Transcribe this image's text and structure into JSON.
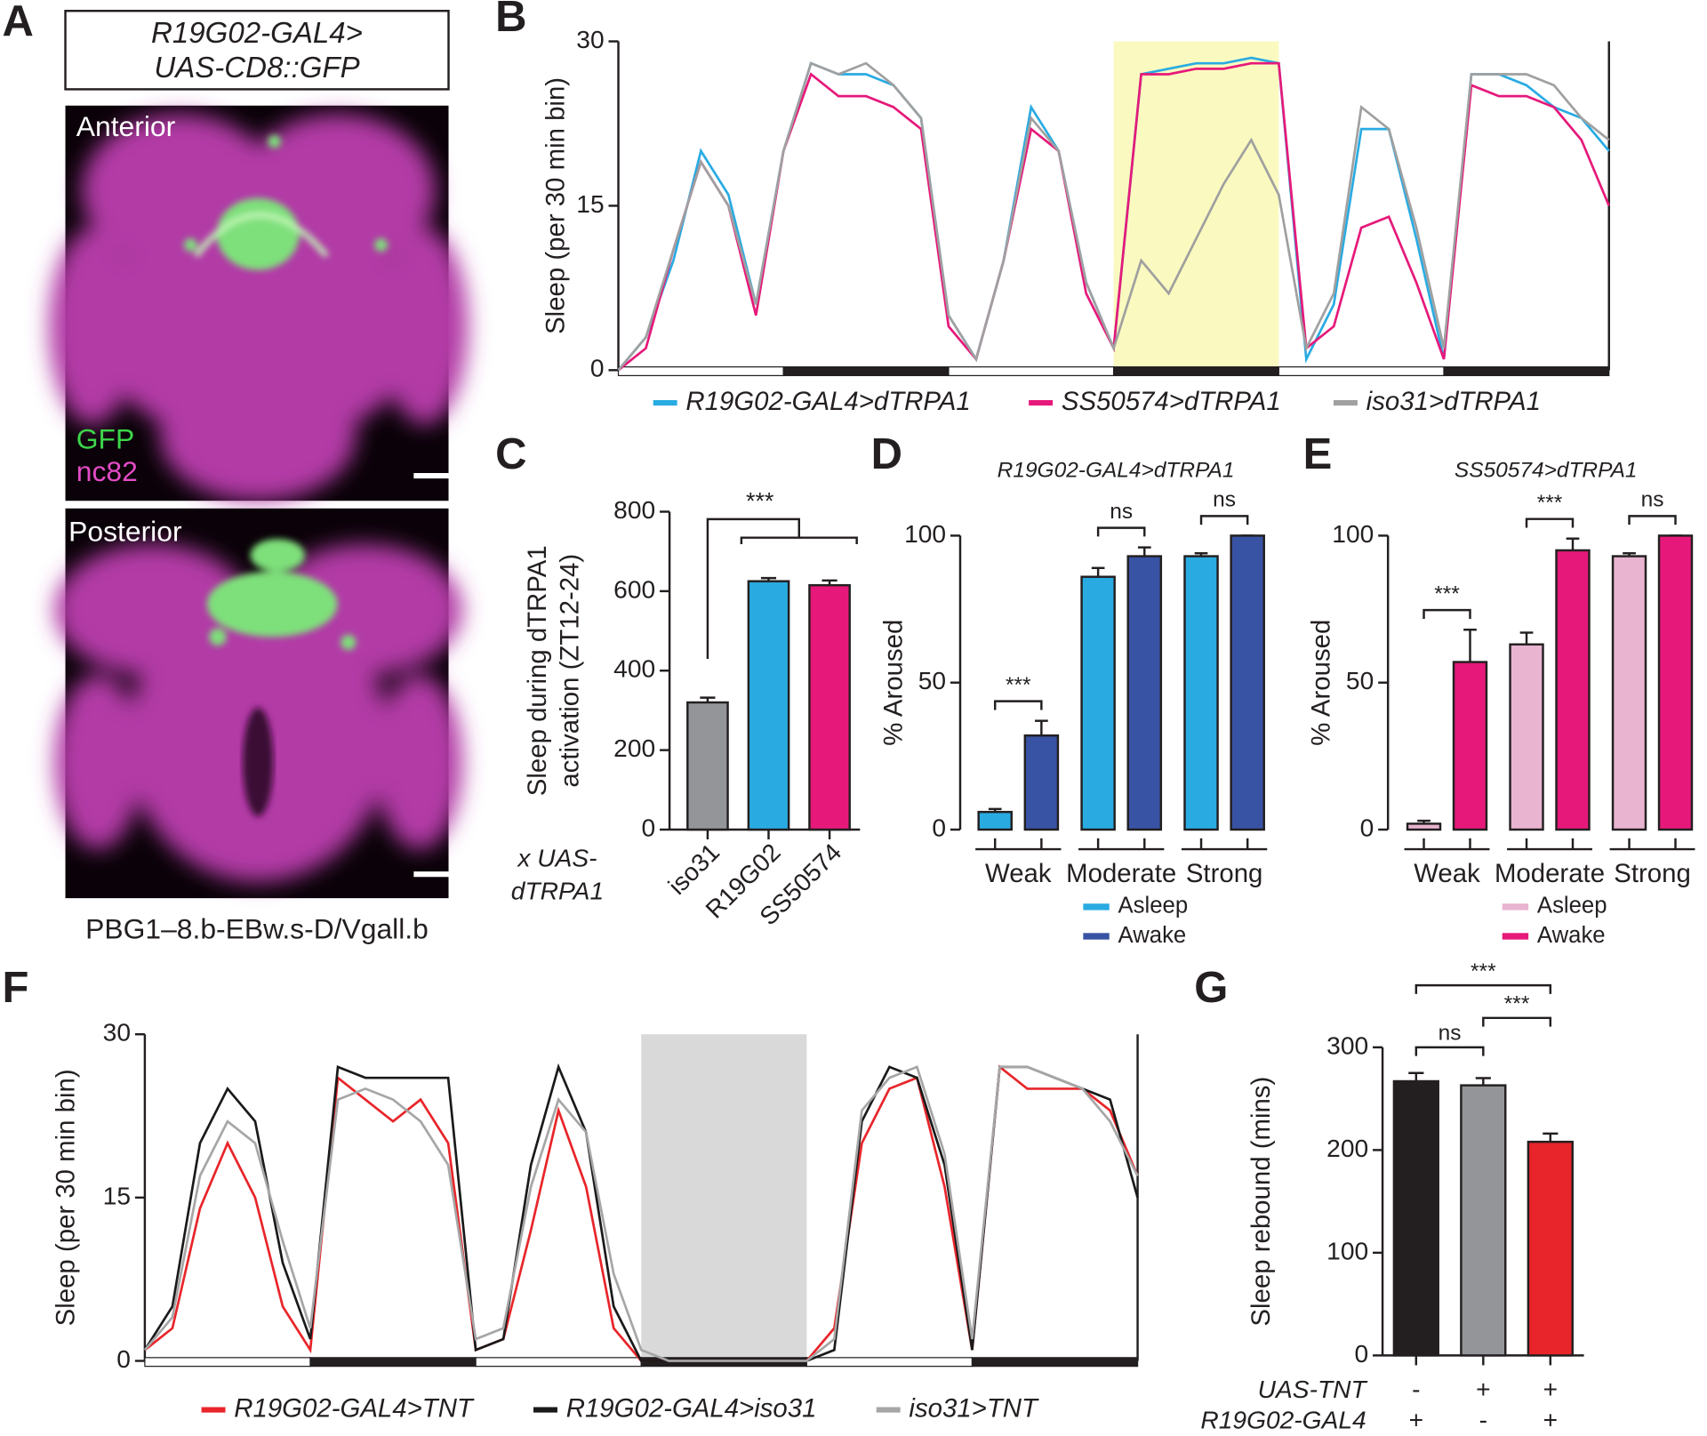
{
  "panel_labels": [
    "A",
    "B",
    "C",
    "D",
    "E",
    "F",
    "G"
  ],
  "image_panel": {
    "box_lines": [
      "R19G02-GAL4>",
      "UAS-CD8::GFP"
    ],
    "top_label": "Anterior",
    "stain_1": "GFP",
    "stain_2": "nc82",
    "bottom_label": "Posterior",
    "caption": "PBG1–8.b-EBw.s-D/Vgall.b"
  },
  "chart_data": [
    {
      "type": "line",
      "ylabel": "Sleep (per 30 min bin)",
      "xlim": [
        0,
        72
      ],
      "ylim": [
        0,
        30
      ],
      "yticks": [
        0,
        15,
        30
      ],
      "shaded_x": [
        36,
        48
      ],
      "shade_color": "#fafac0",
      "x": [
        0,
        2,
        4,
        6,
        8,
        10,
        12,
        14,
        16,
        18,
        20,
        22,
        24,
        26,
        28,
        30,
        32,
        34,
        36,
        38,
        40,
        42,
        44,
        46,
        48,
        50,
        52,
        54,
        56,
        58,
        60,
        62,
        64,
        66,
        68,
        70,
        72
      ],
      "series": [
        {
          "name": "R19G02-GAL4>dTRPA1",
          "color": "#29abe2",
          "values": [
            0,
            3,
            10,
            20,
            16,
            6,
            20,
            28,
            27,
            27,
            26,
            23,
            5,
            1,
            10,
            24,
            20,
            8,
            2,
            27,
            27.5,
            28,
            28,
            28.5,
            28,
            1,
            6,
            22,
            22,
            12,
            1,
            27,
            27,
            26,
            24,
            23,
            20
          ]
        },
        {
          "name": "SS50574>dTRPA1",
          "color": "#e6197a",
          "values": [
            0,
            2,
            11,
            19,
            15,
            5,
            20,
            27,
            25,
            25,
            24,
            22,
            4,
            1,
            10,
            22,
            20,
            7,
            2,
            27,
            27,
            27.5,
            27.5,
            28,
            28,
            2,
            4,
            13,
            14,
            8,
            1,
            26,
            25,
            25,
            24,
            21,
            15
          ]
        },
        {
          "name": "iso31>dTRPA1",
          "color": "#a0a0a0",
          "values": [
            0,
            3,
            11,
            19,
            15,
            6,
            20,
            28,
            27,
            28,
            26,
            23,
            5,
            1,
            10,
            23,
            20,
            8,
            2,
            10,
            7,
            12,
            17,
            21,
            16,
            2,
            7,
            24,
            22,
            13,
            2,
            27,
            27,
            27,
            26,
            23,
            21
          ]
        }
      ]
    },
    {
      "type": "bar",
      "ylabel": [
        "Sleep during dTRPA1",
        "activation (ZT12-24)"
      ],
      "xlabel": [
        "x UAS-",
        "dTRPA1"
      ],
      "categories": [
        "iso31",
        "R19G02",
        "SS50574"
      ],
      "values": [
        320,
        625,
        615
      ],
      "errors": [
        12,
        8,
        12
      ],
      "colors": [
        "#939598",
        "#29abe2",
        "#e6197a"
      ],
      "ylim": [
        0,
        800
      ],
      "yticks": [
        0,
        200,
        400,
        600,
        800
      ],
      "significance": "***"
    },
    {
      "type": "grouped",
      "subtitle": "R19G02-GAL4>dTRPA1",
      "ylabel": "% Aroused",
      "categories": [
        "Weak",
        "Moderate",
        "Strong"
      ],
      "ylim": [
        0,
        100
      ],
      "yticks": [
        0,
        50,
        100
      ],
      "significance": [
        "***",
        "ns",
        "ns"
      ],
      "series": [
        {
          "name": "Asleep",
          "color": "#29abe2",
          "values": [
            6,
            86,
            93
          ],
          "errors": [
            1,
            3,
            1
          ]
        },
        {
          "name": "Awake",
          "color": "#3953a4",
          "values": [
            32,
            93,
            100
          ],
          "errors": [
            5,
            3,
            0
          ]
        }
      ]
    },
    {
      "type": "grouped",
      "subtitle": "SS50574>dTRPA1",
      "ylabel": "% Aroused",
      "categories": [
        "Weak",
        "Moderate",
        "Strong"
      ],
      "ylim": [
        0,
        100
      ],
      "yticks": [
        0,
        50,
        100
      ],
      "significance": [
        "***",
        "***",
        "ns"
      ],
      "series": [
        {
          "name": "Asleep",
          "color": "#e8b4d0",
          "values": [
            2,
            63,
            93
          ],
          "errors": [
            1,
            4,
            1
          ]
        },
        {
          "name": "Awake",
          "color": "#e6197a",
          "values": [
            57,
            95,
            100
          ],
          "errors": [
            11,
            4,
            0
          ]
        }
      ]
    },
    {
      "type": "line",
      "ylabel": "Sleep (per 30 min bin)",
      "xlim": [
        0,
        72
      ],
      "ylim": [
        0,
        30
      ],
      "yticks": [
        0,
        15,
        30
      ],
      "shaded_x": [
        36,
        48
      ],
      "shade_color": "#d9d9d9",
      "x": [
        0,
        2,
        4,
        6,
        8,
        10,
        12,
        14,
        16,
        18,
        20,
        22,
        24,
        26,
        28,
        30,
        32,
        34,
        36,
        38,
        40,
        42,
        44,
        46,
        48,
        50,
        52,
        54,
        56,
        58,
        60,
        62,
        64,
        66,
        68,
        70,
        72
      ],
      "series": [
        {
          "name": "R19G02-GAL4>TNT",
          "color": "#e8252a",
          "values": [
            1,
            3,
            14,
            20,
            15,
            5,
            1,
            26,
            24,
            22,
            24,
            20,
            1,
            2,
            12,
            23,
            16,
            3,
            0,
            0,
            0,
            0,
            0,
            0,
            0,
            3,
            20,
            25,
            26,
            16,
            1,
            27,
            25,
            25,
            25,
            23,
            17
          ]
        },
        {
          "name": "R19G02-GAL4>iso31",
          "color": "#1a1a1a",
          "values": [
            1,
            5,
            20,
            25,
            22,
            9,
            2,
            27,
            26,
            26,
            26,
            26,
            1,
            2,
            18,
            27,
            21,
            5,
            0,
            0,
            0,
            0,
            0,
            0,
            0,
            1,
            22,
            27,
            26,
            18,
            1,
            27,
            27,
            26,
            25,
            24,
            15
          ]
        },
        {
          "name": "iso31>TNT",
          "color": "#a6a6a6",
          "values": [
            1,
            4,
            17,
            22,
            20,
            11,
            3,
            24,
            25,
            24,
            22,
            18,
            2,
            3,
            16,
            24,
            21,
            8,
            1,
            0,
            0,
            0,
            0,
            0,
            0,
            2,
            23,
            26,
            27,
            19,
            2,
            27,
            27,
            26,
            25,
            22,
            17
          ]
        }
      ]
    },
    {
      "type": "bar",
      "ylabel": "Sleep rebound (mins)",
      "values": [
        267,
        263,
        208
      ],
      "errors": [
        8,
        7,
        8
      ],
      "colors": [
        "#231f20",
        "#939598",
        "#e8252a"
      ],
      "ylim": [
        0,
        300
      ],
      "yticks": [
        0,
        100,
        200,
        300
      ],
      "rows": [
        {
          "label": "UAS-TNT",
          "values": [
            "-",
            "+",
            "+"
          ]
        },
        {
          "label": "R19G02-GAL4",
          "values": [
            "+",
            "-",
            "+"
          ]
        }
      ],
      "comparisons": [
        {
          "label": "***",
          "between": [
            0,
            2
          ]
        },
        {
          "label": "***",
          "between": [
            1,
            2
          ]
        },
        {
          "label": "ns",
          "between": [
            0,
            1
          ]
        }
      ]
    }
  ]
}
